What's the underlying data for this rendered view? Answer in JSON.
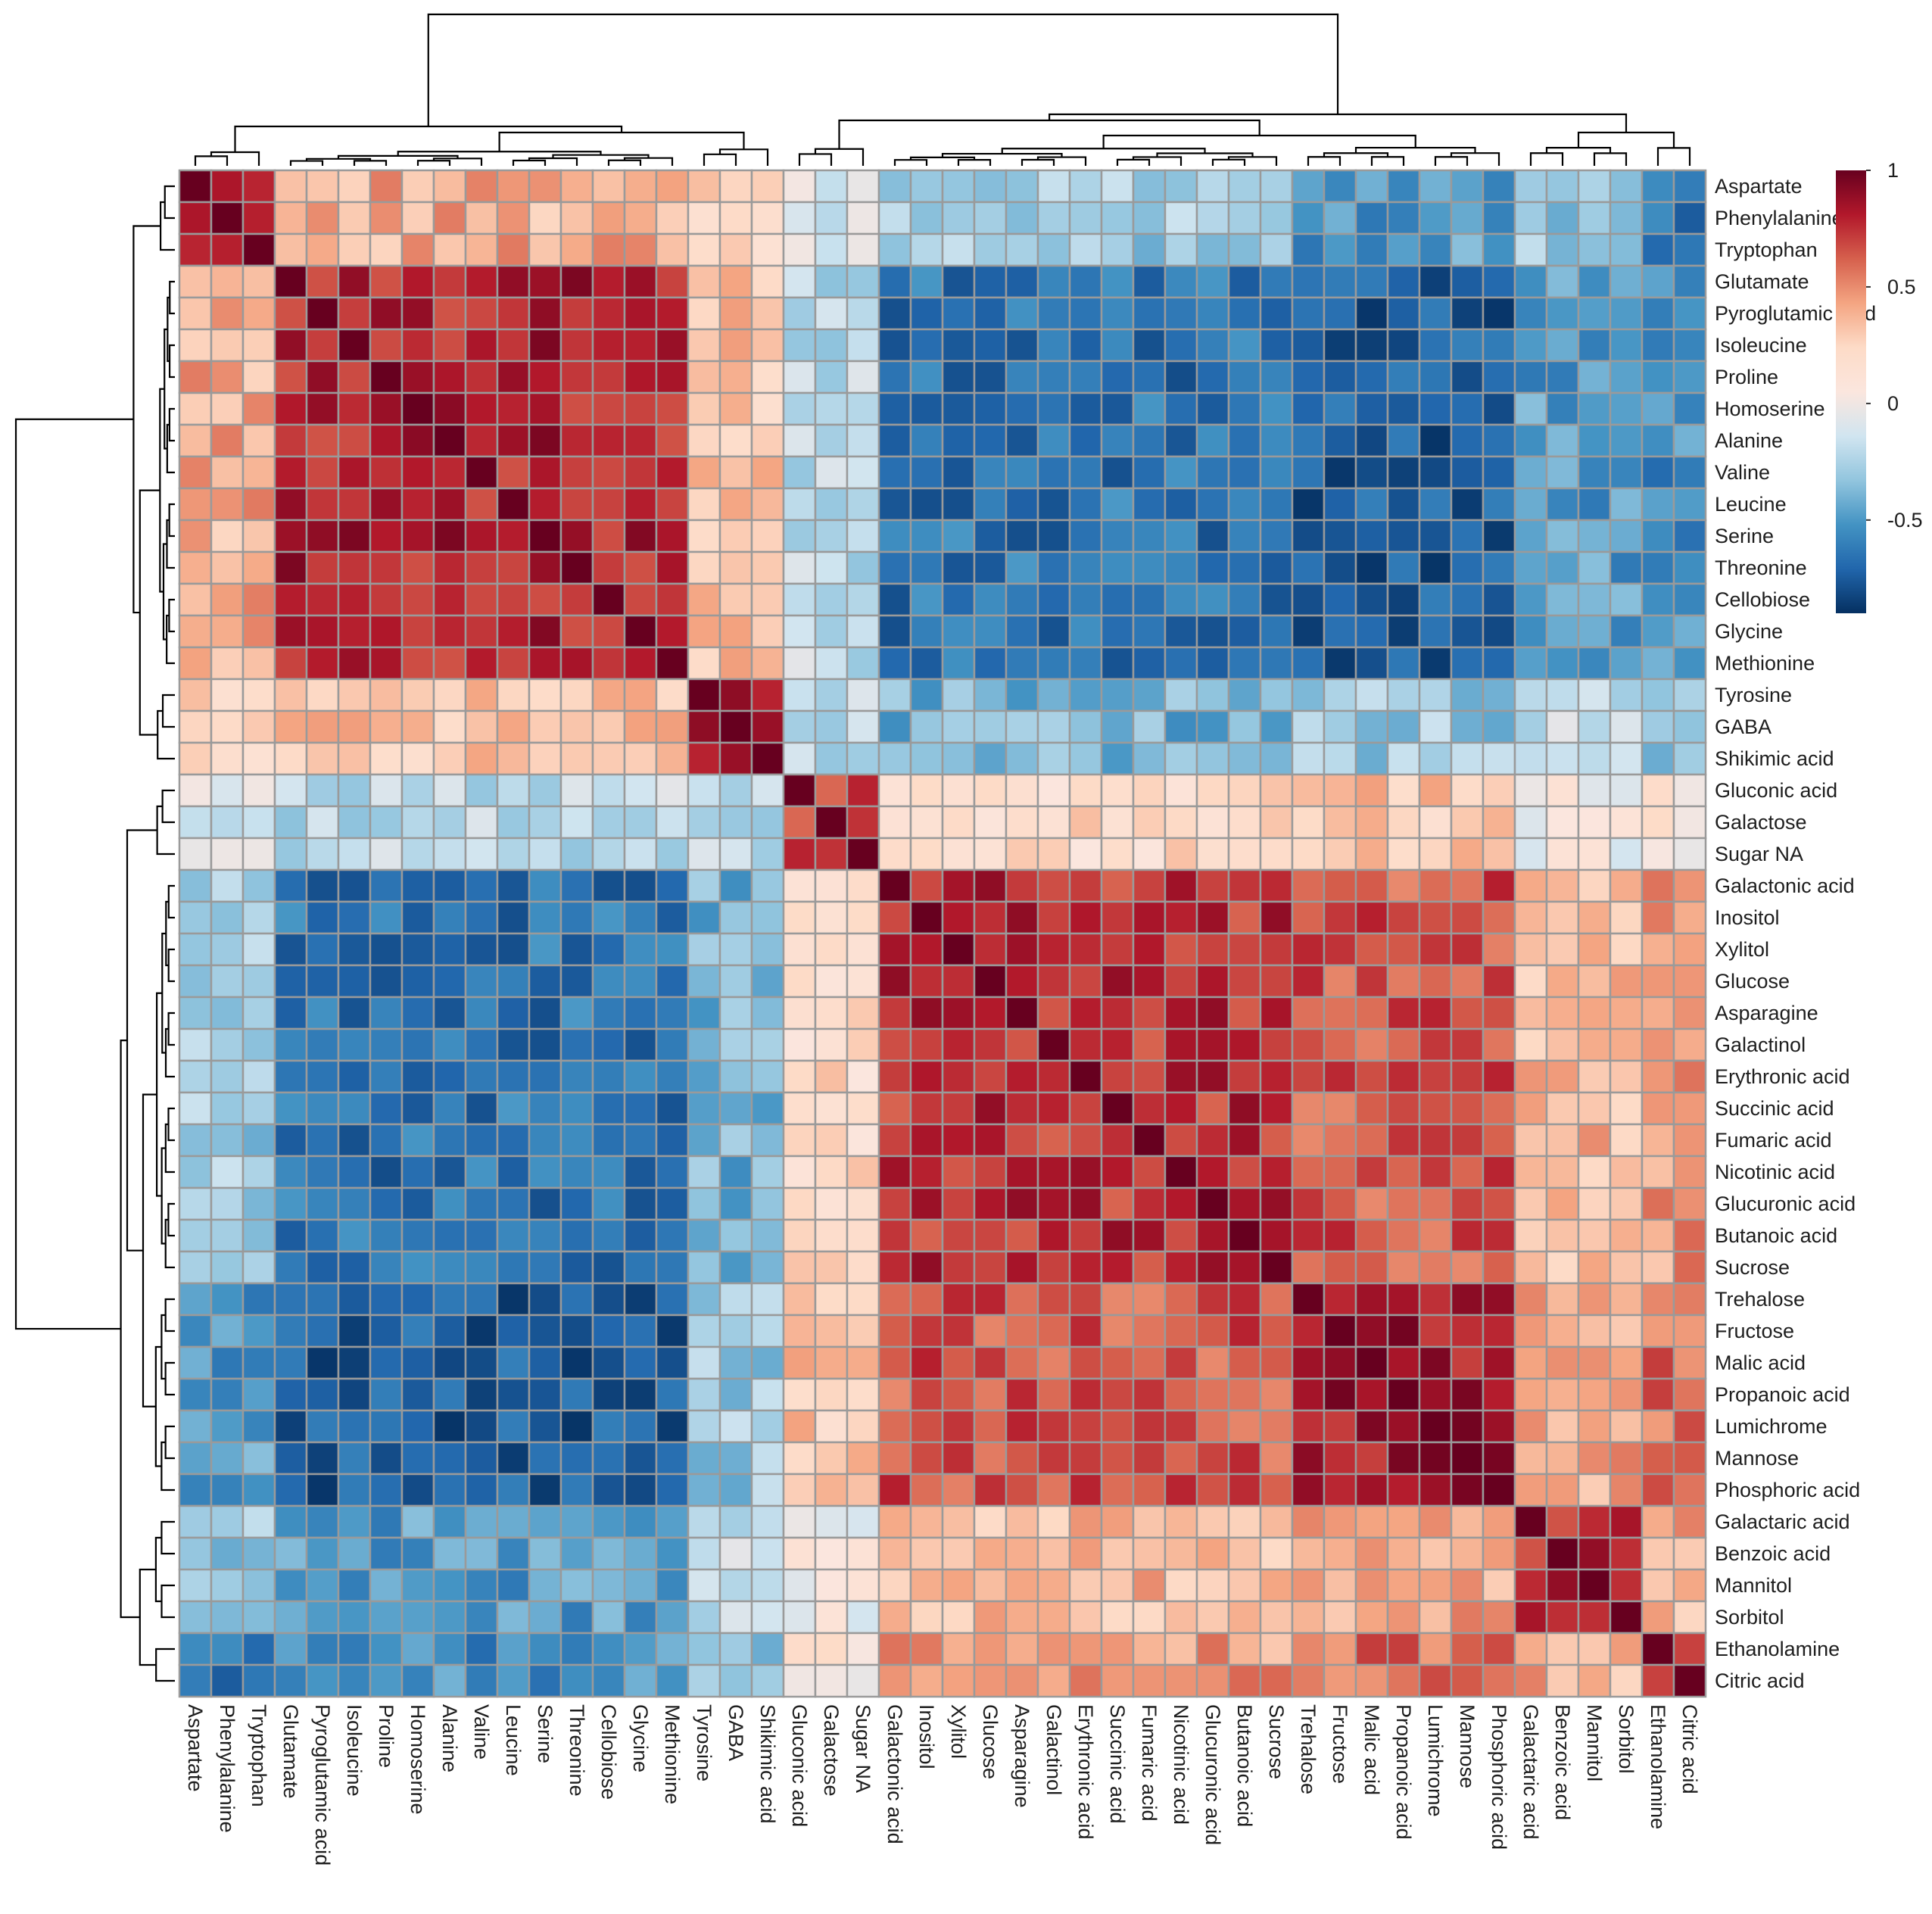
{
  "chart_data": {
    "type": "heatmap",
    "title": "",
    "labels": [
      "Aspartate",
      "Phenylalanine",
      "Tryptophan",
      "Glutamate",
      "Pyroglutamic acid",
      "Isoleucine",
      "Proline",
      "Homoserine",
      "Alanine",
      "Valine",
      "Leucine",
      "Serine",
      "Threonine",
      "Cellobiose",
      "Glycine",
      "Methionine",
      "Tyrosine",
      "GABA",
      "Shikimic acid",
      "Gluconic acid",
      "Galactose",
      "Sugar NA",
      "Galactonic acid",
      "Inositol",
      "Xylitol",
      "Glucose",
      "Asparagine",
      "Galactinol",
      "Erythronic acid",
      "Succinic acid",
      "Fumaric acid",
      "Nicotinic acid",
      "Glucuronic acid",
      "Butanoic acid",
      "Sucrose",
      "Trehalose",
      "Fructose",
      "Malic acid",
      "Propanoic acid",
      "Lumichrome",
      "Mannose",
      "Phosphoric acid",
      "Galactaric acid",
      "Benzoic acid",
      "Mannitol",
      "Sorbitol",
      "Ethanolamine",
      "Citric acid"
    ],
    "cluster_sizes": [
      3,
      13,
      3,
      3,
      13,
      7,
      4,
      2
    ],
    "block_values": [
      [
        0.92,
        0.4,
        0.2,
        -0.1,
        -0.3,
        -0.5,
        -0.3,
        -0.6
      ],
      [
        0.4,
        0.8,
        0.3,
        -0.2,
        -0.65,
        -0.75,
        -0.5,
        -0.55
      ],
      [
        0.2,
        0.3,
        0.9,
        -0.2,
        -0.4,
        -0.3,
        -0.2,
        -0.4
      ],
      [
        -0.1,
        -0.2,
        -0.2,
        0.7,
        0.2,
        0.3,
        0.0,
        0.1
      ],
      [
        -0.3,
        -0.65,
        -0.4,
        0.2,
        0.75,
        0.65,
        0.35,
        0.45
      ],
      [
        -0.5,
        -0.75,
        -0.3,
        0.3,
        0.65,
        0.85,
        0.4,
        0.6
      ],
      [
        -0.3,
        -0.5,
        -0.2,
        0.0,
        0.35,
        0.4,
        0.75,
        0.4
      ],
      [
        -0.6,
        -0.55,
        -0.4,
        0.1,
        0.45,
        0.6,
        0.4,
        0.8
      ]
    ],
    "colorbar": {
      "min": -0.9,
      "max": 1,
      "ticks": [
        1,
        0.5,
        0,
        -0.5
      ],
      "tick_labels": [
        "1",
        "0.5",
        "0",
        "-0.5"
      ],
      "colors": [
        "#053061",
        "#2166ac",
        "#4393c3",
        "#92c5de",
        "#d1e5f0",
        "#fbe6de",
        "#fddbc7",
        "#f4a582",
        "#d6604d",
        "#b2182b",
        "#67001f"
      ]
    },
    "grid": true,
    "legend_position": "top-right",
    "dendrogram": "rows and columns"
  }
}
